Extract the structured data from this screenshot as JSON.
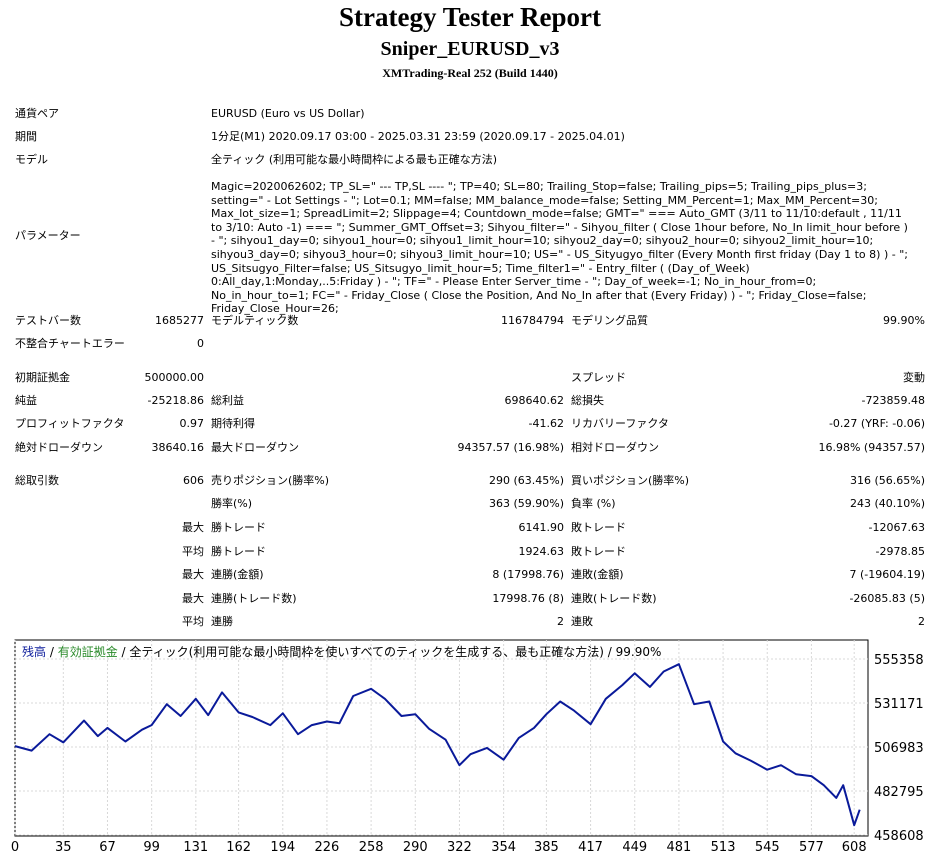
{
  "title": "Strategy Tester Report",
  "ea_name": "Sniper_EURUSD_v3",
  "server": "XMTrading-Real 252 (Build 1440)",
  "info": {
    "symbol_label": "通貨ペア",
    "symbol_value": "EURUSD (Euro vs US Dollar)",
    "period_label": "期間",
    "period_value": "1分足(M1) 2020.09.17 03:00 - 2025.03.31 23:59 (2020.09.17 - 2025.04.01)",
    "model_label": "モデル",
    "model_value": "全ティック (利用可能な最小時間枠による最も正確な方法)",
    "params_label": "パラメーター",
    "params_value": "Magic=2020062602; TP_SL=\" --- TP,SL ---- \"; TP=40; SL=80; Trailing_Stop=false; Trailing_pips=5; Trailing_pips_plus=3; setting=\" - Lot Settings - \"; Lot=0.1; MM=false; MM_balance_mode=false; Setting_MM_Percent=1; Max_MM_Percent=30; Max_lot_size=1; SpreadLimit=2; Slippage=4; Countdown_mode=false; GMT=\" === Auto_GMT (3/11 to 11/10:default , 11/11 to 3/10: Auto -1) === \"; Summer_GMT_Offset=3; Sihyou_filter=\" - Sihyou_filter ( Close 1hour before, No_In limit_hour before ) - \"; sihyou1_day=0; sihyou1_hour=0; sihyou1_limit_hour=10; sihyou2_day=0; sihyou2_hour=0; sihyou2_limit_hour=10; sihyou3_day=0; sihyou3_hour=0; sihyou3_limit_hour=10; US=\" - US_Sityugyo_filter (Every Month first friday (Day 1 to 8) ) - \"; US_Sitsugyo_Filter=false; US_Sitsugyo_limit_hour=5; Time_filter1=\" - Entry_filter ( (Day_of_Week) 0:All_day,1:Monday,..5:Friday ) - \"; TF=\" - Please Enter Server_time - \"; Day_of_week=-1; No_in_hour_from=0; No_in_hour_to=1; FC=\" - Friday_Close ( Close the Position, And No_In after that (Every Friday) ) - \"; Friday_Close=false; Friday_Close_Hour=26;"
  },
  "stats": {
    "bars_label": "テストバー数",
    "bars_value": "1685277",
    "ticks_label": "モデルティック数",
    "ticks_value": "116784794",
    "quality_label": "モデリング品質",
    "quality_value": "99.90%",
    "mismatch_label": "不整合チャートエラー",
    "mismatch_value": "0",
    "deposit_label": "初期証拠金",
    "deposit_value": "500000.00",
    "spread_label": "スプレッド",
    "spread_value": "変動",
    "net_label": "純益",
    "net_value": "-25218.86",
    "gross_profit_label": "総利益",
    "gross_profit_value": "698640.62",
    "gross_loss_label": "総損失",
    "gross_loss_value": "-723859.48",
    "pf_label": "プロフィットファクタ",
    "pf_value": "0.97",
    "expected_label": "期待利得",
    "expected_value": "-41.62",
    "recovery_label": "リカバリーファクタ",
    "recovery_value": "-0.27 (YRF: -0.06)",
    "abs_dd_label": "絶対ドローダウン",
    "abs_dd_value": "38640.16",
    "max_dd_label": "最大ドローダウン",
    "max_dd_value": "94357.57 (16.98%)",
    "rel_dd_label": "相対ドローダウン",
    "rel_dd_value": "16.98% (94357.57)",
    "trades_label": "総取引数",
    "trades_value": "606",
    "short_label": "売りポジション(勝率%)",
    "short_value": "290 (63.45%)",
    "long_label": "買いポジション(勝率%)",
    "long_value": "316 (56.65%)",
    "winrate_label": "勝率(%)",
    "winrate_value": "363 (59.90%)",
    "lossrate_label": "負率 (%)",
    "lossrate_value": "243 (40.10%)",
    "max1": "最大",
    "largest_win_label": "勝トレード",
    "largest_win_value": "6141.90",
    "largest_loss_label": "敗トレード",
    "largest_loss_value": "-12067.63",
    "avg1": "平均",
    "avg_win_label": "勝トレード",
    "avg_win_value": "1924.63",
    "avg_loss_label": "敗トレード",
    "avg_loss_value": "-2978.85",
    "max2": "最大",
    "consec_wins_money_label": "連勝(金額)",
    "consec_wins_money_value": "8 (17998.76)",
    "consec_losses_money_label": "連敗(金額)",
    "consec_losses_money_value": "7 (-19604.19)",
    "max3": "最大",
    "consec_wins_trades_label": "連勝(トレード数)",
    "consec_wins_trades_value": "17998.76 (8)",
    "consec_losses_trades_label": "連敗(トレード数)",
    "consec_losses_trades_value": "-26085.83 (5)",
    "avg2": "平均",
    "avg_consec_wins_label": "連勝",
    "avg_consec_wins_value": "2",
    "avg_consec_losses_label": "連敗",
    "avg_consec_losses_value": "2"
  },
  "chart_data": {
    "type": "line",
    "legend": {
      "balance": "残高",
      "sep1": " / ",
      "equity": "有効証拠金",
      "sep2": " / ",
      "model": "全ティック(利用可能な最小時間枠を使いすべてのティックを生成する、最も正確な方法) / 99.90%"
    },
    "colors": {
      "line": "#0a1a9a",
      "balance_label": "#0a1a9a",
      "equity_label": "#2a8a2a",
      "grid": "#d8d8d8"
    },
    "x_ticks": [
      0,
      35,
      67,
      99,
      131,
      162,
      194,
      226,
      258,
      290,
      322,
      354,
      385,
      417,
      449,
      481,
      513,
      545,
      577,
      608
    ],
    "y_ticks": [
      555358,
      531171,
      506983,
      482795,
      458608
    ],
    "xlim": [
      0,
      618
    ],
    "ylim": [
      458608,
      560000
    ],
    "x": [
      0,
      12,
      25,
      35,
      50,
      60,
      67,
      80,
      92,
      99,
      110,
      120,
      131,
      140,
      150,
      162,
      172,
      185,
      194,
      205,
      215,
      226,
      235,
      245,
      258,
      268,
      280,
      290,
      300,
      312,
      322,
      330,
      342,
      354,
      365,
      376,
      385,
      395,
      405,
      417,
      428,
      440,
      449,
      460,
      470,
      481,
      492,
      503,
      513,
      522,
      533,
      545,
      555,
      566,
      577,
      586,
      595,
      600,
      608,
      612
    ],
    "y": [
      507500,
      505000,
      514000,
      509500,
      521500,
      513000,
      517500,
      510000,
      516500,
      519000,
      530500,
      524000,
      533500,
      524500,
      537000,
      526000,
      523500,
      519000,
      525500,
      514000,
      519000,
      521000,
      520000,
      535000,
      539000,
      533500,
      524000,
      525000,
      517000,
      511000,
      497000,
      503000,
      506500,
      500000,
      512000,
      517500,
      525000,
      532000,
      527000,
      519500,
      533500,
      541000,
      547500,
      540000,
      548500,
      552500,
      530500,
      532000,
      510000,
      503500,
      499500,
      494500,
      497000,
      492000,
      491000,
      486000,
      479000,
      486000,
      464000,
      472500
    ]
  }
}
